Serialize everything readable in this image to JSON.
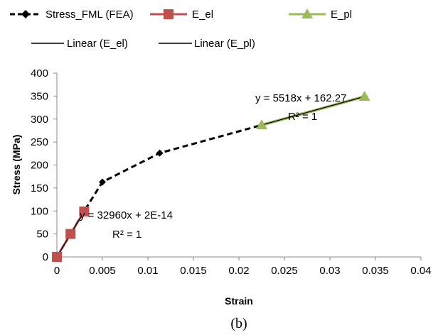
{
  "chart_data": {
    "type": "scatter",
    "caption": "(b)",
    "xlabel": "Strain",
    "ylabel": "Stress (MPa)",
    "xlim": [
      0,
      0.04
    ],
    "ylim": [
      0,
      400
    ],
    "x_ticks": [
      "0",
      "0.005",
      "0.01",
      "0.015",
      "0.02",
      "0.025",
      "0.03",
      "0.035",
      "0.04"
    ],
    "y_ticks": [
      "0",
      "50",
      "100",
      "150",
      "200",
      "250",
      "300",
      "350",
      "400"
    ],
    "grid": false,
    "legend_position": "top",
    "series": [
      {
        "name": "Stress_FML (FEA)",
        "style": "dashed-line-diamond",
        "color": "#000000",
        "x": [
          0,
          0.0015,
          0.003,
          0.005,
          0.0113,
          0.0225,
          0.0338
        ],
        "y": [
          0,
          50,
          100,
          163,
          226,
          287,
          349
        ]
      },
      {
        "name": "E_el",
        "style": "line-square",
        "color": "#c0504d",
        "x": [
          0,
          0.0015,
          0.003
        ],
        "y": [
          0,
          50,
          99
        ]
      },
      {
        "name": "E_pl",
        "style": "line-triangle",
        "color": "#9bbb59",
        "x": [
          0.0225,
          0.0338
        ],
        "y": [
          287,
          349
        ]
      },
      {
        "name": "Linear (E_el)",
        "style": "trendline",
        "color": "#000000",
        "x": [
          0,
          0.003
        ],
        "y": [
          0,
          99
        ]
      },
      {
        "name": "Linear (E_pl)",
        "style": "trendline",
        "color": "#000000",
        "x": [
          0.0225,
          0.0338
        ],
        "y": [
          287,
          349
        ]
      }
    ],
    "annotations": [
      {
        "equation": "y = 32960x + 2E-14",
        "r2": "R² = 1"
      },
      {
        "equation": "y = 5518x + 162.27",
        "r2": "R² = 1"
      }
    ]
  }
}
